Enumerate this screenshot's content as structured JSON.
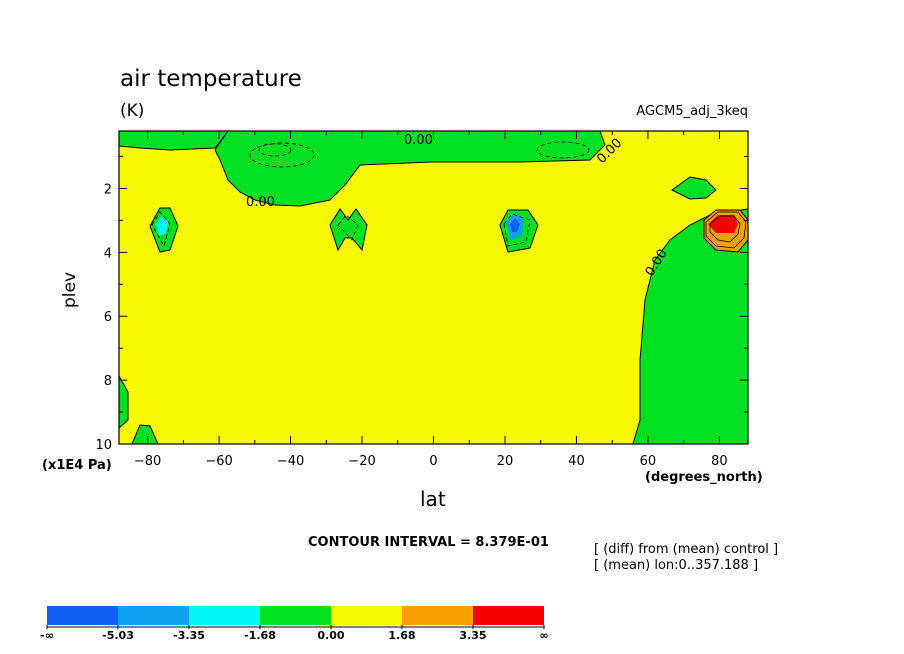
{
  "chart_data": {
    "type": "contour",
    "title": "air temperature",
    "units": "(K)",
    "run_name": "AGCM5_adj_3keq",
    "xlabel": "lat",
    "ylabel": "plev",
    "x_units": "(degrees_north)",
    "y_units": "(x1E4 Pa)",
    "xlim": [
      -88,
      88
    ],
    "ylim": [
      0.2,
      10
    ],
    "y_inverted": true,
    "x_ticks": [
      "-80",
      "-60",
      "-40",
      "-20",
      "0",
      "20",
      "40",
      "60",
      "80"
    ],
    "y_ticks": [
      "2",
      "4",
      "6",
      "8",
      "10"
    ],
    "contour_interval": "CONTOUR INTERVAL = 8.379E-01",
    "contour_labels": [
      "0.00",
      "0.00",
      "0.00",
      "0.00"
    ],
    "notes": [
      "[ (diff) from (mean) control ]",
      "[ (mean) lon:0..357.188 ]"
    ],
    "colorbar": {
      "labels": [
        "-∞",
        "-5.03",
        "-3.35",
        "-1.68",
        "0.00",
        "1.68",
        "3.35",
        "∞"
      ],
      "colors": [
        "#1060f0",
        "#10a0f0",
        "#00f8f8",
        "#00e020",
        "#f8f800",
        "#f8a000",
        "#f80000"
      ]
    }
  }
}
